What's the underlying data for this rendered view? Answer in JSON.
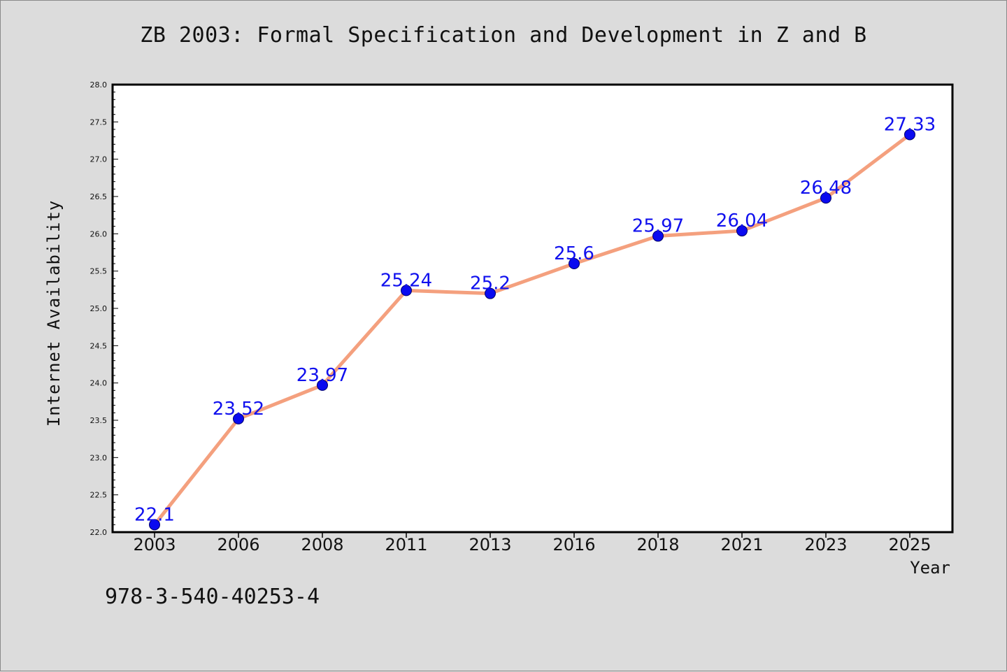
{
  "title": "ZB 2003: Formal Specification and Development in Z and B",
  "isbn": "978-3-540-40253-4",
  "colors": {
    "background": "#dcdcdc",
    "plot_background": "#ffffff",
    "line": "#f4a07e",
    "marker": "#0a0af0",
    "data_label": "#1010ee"
  },
  "chart_data": {
    "type": "line",
    "xlabel": "Year",
    "ylabel": "Internet Availability",
    "categories": [
      "2003",
      "2006",
      "2008",
      "2011",
      "2013",
      "2016",
      "2018",
      "2021",
      "2023",
      "2025"
    ],
    "series": [
      {
        "values": [
          22.1,
          23.52,
          23.97,
          25.24,
          25.2,
          25.6,
          25.97,
          26.04,
          26.48,
          27.33
        ],
        "labels": [
          "22.1",
          "23.52",
          "23.97",
          "25.24",
          "25.2",
          "25.6",
          "25.97",
          "26.04",
          "26.48",
          "27.33"
        ]
      }
    ],
    "ylim": [
      22.0,
      28.0
    ],
    "yticks": [
      "22.0",
      "22.5",
      "23.0",
      "23.5",
      "24.0",
      "24.5",
      "25.0",
      "25.5",
      "26.0",
      "26.5",
      "27.0",
      "27.5",
      "28.0"
    ],
    "grid": false,
    "legend": "none"
  }
}
